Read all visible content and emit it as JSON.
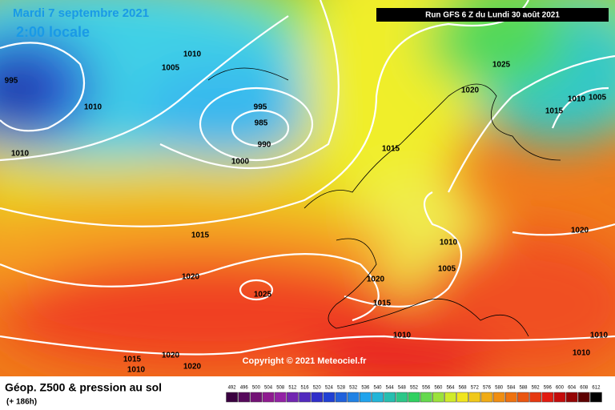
{
  "header": {
    "date": "Mardi 7 septembre 2021",
    "time": "2:00 locale",
    "run": "Run GFS 6 Z du Lundi 30 août 2021"
  },
  "isobar_labels": [
    "995",
    "1010",
    "1005",
    "1010",
    "1010",
    "995",
    "985",
    "990",
    "1000",
    "1025",
    "1020",
    "1010",
    "1005",
    "1015",
    "1015",
    "1015",
    "1020",
    "1025",
    "1010",
    "1005",
    "1020",
    "1015",
    "1020",
    "1010",
    "1010",
    "1010",
    "1015",
    "1010",
    "1020",
    "1020"
  ],
  "copyright": "Copyright © 2021 Meteociel.fr",
  "footer": {
    "title": "Géop. Z500 & pression au sol",
    "lead": "(+ 186h)"
  },
  "scale": [
    "492",
    "496",
    "500",
    "504",
    "508",
    "512",
    "516",
    "520",
    "524",
    "528",
    "532",
    "536",
    "540",
    "544",
    "548",
    "552",
    "556",
    "560",
    "564",
    "568",
    "572",
    "576",
    "580",
    "584",
    "588",
    "592",
    "596",
    "600",
    "604",
    "608",
    "612"
  ]
}
